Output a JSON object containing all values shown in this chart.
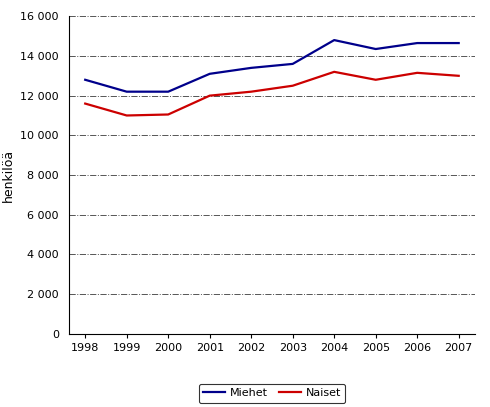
{
  "years": [
    1998,
    1999,
    2000,
    2001,
    2002,
    2003,
    2004,
    2005,
    2006,
    2007
  ],
  "miehet": [
    12800,
    12200,
    12200,
    13100,
    13400,
    13600,
    14800,
    14350,
    14650,
    14650
  ],
  "naiset": [
    11600,
    11000,
    11050,
    12000,
    12200,
    12500,
    13200,
    12800,
    13150,
    13000
  ],
  "miehet_color": "#00008B",
  "naiset_color": "#CC0000",
  "ylabel": "henkilöä",
  "ylim": [
    0,
    16000
  ],
  "yticks": [
    0,
    2000,
    4000,
    6000,
    8000,
    10000,
    12000,
    14000,
    16000
  ],
  "legend_miehet": "Miehet",
  "legend_naiset": "Naiset",
  "background_color": "#ffffff",
  "grid_color": "#555555",
  "line_width": 1.6,
  "figsize": [
    4.9,
    4.07
  ],
  "dpi": 100
}
